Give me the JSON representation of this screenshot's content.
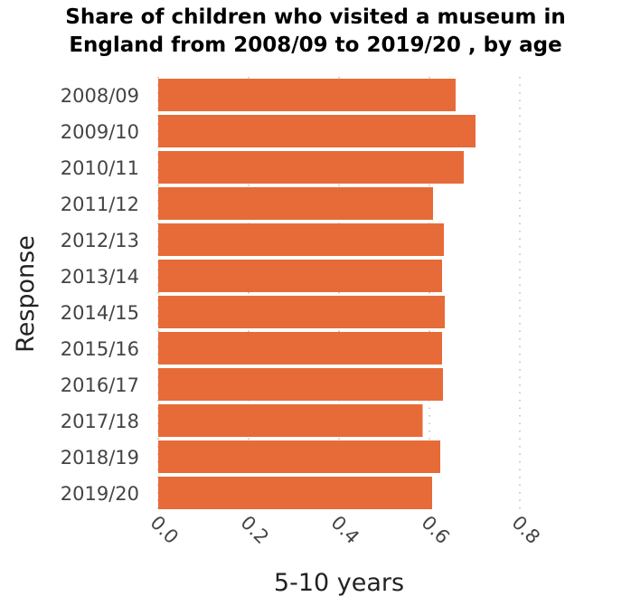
{
  "chart_data": {
    "type": "bar",
    "orientation": "horizontal",
    "title_lines": [
      "Share of children who visited a museum in",
      "England from 2008/09 to 2019/20 , by age"
    ],
    "xlabel": "5-10 years",
    "ylabel": "Response",
    "xlim": [
      0,
      0.8
    ],
    "xticks": [
      "0.0",
      "0.2",
      "0.4",
      "0.6",
      "0.8"
    ],
    "grid": "vertical dotted",
    "bar_color": "#e66b39",
    "categories": [
      "2008/09",
      "2009/10",
      "2010/11",
      "2011/12",
      "2012/13",
      "2013/14",
      "2014/15",
      "2015/16",
      "2016/17",
      "2017/18",
      "2018/19",
      "2019/20"
    ],
    "values": [
      0.658,
      0.702,
      0.676,
      0.608,
      0.632,
      0.628,
      0.634,
      0.628,
      0.63,
      0.585,
      0.624,
      0.606
    ]
  }
}
